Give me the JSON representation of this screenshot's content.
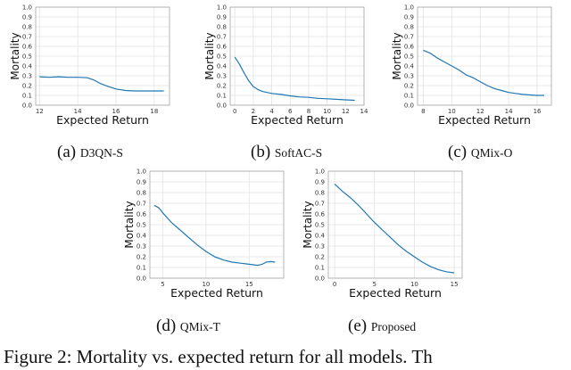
{
  "chart_data": [
    {
      "type": "line",
      "panel_label": "(a)",
      "method": "D3QN-S",
      "xlabel": "Expected Return",
      "ylabel": "Mortality",
      "xlim": [
        11.8,
        18.8
      ],
      "ylim": [
        0,
        1
      ],
      "xticks": [
        12,
        14,
        16,
        18
      ],
      "yticks": [
        0,
        0.1,
        0.2,
        0.3,
        0.4,
        0.5,
        0.6,
        0.7,
        0.8,
        0.9,
        1.0
      ],
      "grid": true,
      "color": "#1f77b4",
      "x": [
        12,
        12.5,
        13,
        13.5,
        14,
        14.5,
        14.8,
        15.2,
        15.6,
        16,
        16.5,
        17,
        17.5,
        18,
        18.5
      ],
      "y": [
        0.29,
        0.285,
        0.29,
        0.285,
        0.285,
        0.28,
        0.26,
        0.22,
        0.19,
        0.165,
        0.15,
        0.145,
        0.145,
        0.145,
        0.145
      ]
    },
    {
      "type": "line",
      "panel_label": "(b)",
      "method": "SoftAC-S",
      "xlabel": "Expected Return",
      "ylabel": "Mortality",
      "xlim": [
        -0.5,
        14
      ],
      "ylim": [
        0,
        1
      ],
      "xticks": [
        0,
        2,
        4,
        6,
        8,
        10,
        12,
        14
      ],
      "yticks": [
        0,
        0.1,
        0.2,
        0.3,
        0.4,
        0.5,
        0.6,
        0.7,
        0.8,
        0.9,
        1.0
      ],
      "grid": true,
      "color": "#1f77b4",
      "x": [
        0,
        0.5,
        1,
        1.5,
        2,
        2.5,
        3,
        4,
        5,
        6,
        7,
        8,
        9,
        10,
        11,
        12,
        13
      ],
      "y": [
        0.49,
        0.42,
        0.33,
        0.25,
        0.19,
        0.16,
        0.14,
        0.12,
        0.11,
        0.095,
        0.085,
        0.08,
        0.07,
        0.065,
        0.06,
        0.055,
        0.05
      ]
    },
    {
      "type": "line",
      "panel_label": "(c)",
      "method": "QMix-O",
      "xlabel": "Expected Return",
      "ylabel": "Mortality",
      "xlim": [
        7.6,
        17
      ],
      "ylim": [
        0,
        1
      ],
      "xticks": [
        8,
        10,
        12,
        14,
        16
      ],
      "yticks": [
        0,
        0.1,
        0.2,
        0.3,
        0.4,
        0.5,
        0.6,
        0.7,
        0.8,
        0.9,
        1.0
      ],
      "grid": true,
      "color": "#1f77b4",
      "x": [
        8,
        8.5,
        9,
        9.5,
        10,
        10.5,
        11,
        11.5,
        12,
        12.5,
        13,
        13.5,
        14,
        14.5,
        15,
        15.5,
        16,
        16.5
      ],
      "y": [
        0.56,
        0.53,
        0.48,
        0.44,
        0.4,
        0.36,
        0.31,
        0.28,
        0.24,
        0.2,
        0.17,
        0.15,
        0.13,
        0.12,
        0.11,
        0.105,
        0.1,
        0.1
      ]
    },
    {
      "type": "line",
      "panel_label": "(d)",
      "method": "QMix-T",
      "xlabel": "Expected Return",
      "ylabel": "Mortality",
      "xlim": [
        3.5,
        19
      ],
      "ylim": [
        0,
        1
      ],
      "xticks": [
        5,
        10,
        15
      ],
      "yticks": [
        0,
        0.1,
        0.2,
        0.3,
        0.4,
        0.5,
        0.6,
        0.7,
        0.8,
        0.9,
        1.0
      ],
      "grid": true,
      "color": "#1f77b4",
      "x": [
        4,
        4.5,
        5,
        6,
        7,
        8,
        9,
        10,
        11,
        12,
        13,
        14,
        15,
        16,
        16.5,
        17,
        17.5,
        18
      ],
      "y": [
        0.68,
        0.66,
        0.61,
        0.52,
        0.45,
        0.38,
        0.31,
        0.25,
        0.2,
        0.17,
        0.15,
        0.14,
        0.13,
        0.12,
        0.13,
        0.15,
        0.155,
        0.15
      ]
    },
    {
      "type": "line",
      "panel_label": "(e)",
      "method": "Proposed",
      "xlabel": "Expected Return",
      "ylabel": "Mortality",
      "xlim": [
        -0.8,
        16
      ],
      "ylim": [
        0,
        1
      ],
      "xticks": [
        0,
        5,
        10,
        15
      ],
      "yticks": [
        0,
        0.1,
        0.2,
        0.3,
        0.4,
        0.5,
        0.6,
        0.7,
        0.8,
        0.9,
        1.0
      ],
      "grid": true,
      "color": "#1f77b4",
      "x": [
        0,
        1,
        2,
        3,
        4,
        5,
        6,
        7,
        8,
        9,
        10,
        11,
        12,
        13,
        14,
        15
      ],
      "y": [
        0.88,
        0.81,
        0.75,
        0.68,
        0.6,
        0.52,
        0.45,
        0.38,
        0.31,
        0.25,
        0.2,
        0.15,
        0.11,
        0.08,
        0.06,
        0.05
      ]
    }
  ],
  "figure_caption": "Figure 2: Mortality vs. expected return for all models. Th"
}
